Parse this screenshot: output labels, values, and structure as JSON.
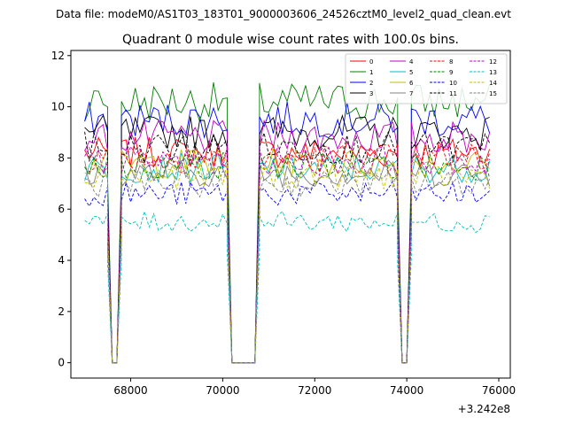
{
  "chart_data": {
    "type": "line",
    "suptitle": "Data file: modeM0/AS1T03_183T01_9000003606_24526cztM0_level2_quad_clean.evt",
    "title": "Quadrant 0 module wise count rates with 100.0s bins.",
    "xlabel": "",
    "ylabel": "",
    "x_offset_label": "+3.242e8",
    "xlim": [
      66700,
      76250
    ],
    "ylim": [
      -0.6,
      12.2
    ],
    "x_ticks": [
      68000,
      70000,
      72000,
      74000,
      76000
    ],
    "x_tick_labels": [
      "68000",
      "70000",
      "72000",
      "74000",
      "76000"
    ],
    "y_ticks": [
      0,
      2,
      4,
      6,
      8,
      10,
      12
    ],
    "y_tick_labels": [
      "0",
      "2",
      "4",
      "6",
      "8",
      "10",
      "12"
    ],
    "legend_position": "top-right",
    "segments": [
      {
        "start": 67000,
        "end": 67500,
        "profile": "plateau"
      },
      {
        "start": 67500,
        "end": 67800,
        "profile": "drop"
      },
      {
        "start": 67800,
        "end": 70100,
        "profile": "plateau"
      },
      {
        "start": 70100,
        "end": 70800,
        "profile": "gap"
      },
      {
        "start": 70800,
        "end": 73800,
        "profile": "plateau"
      },
      {
        "start": 73800,
        "end": 74100,
        "profile": "drop"
      },
      {
        "start": 74100,
        "end": 75800,
        "profile": "plateau"
      }
    ],
    "series": [
      {
        "name": "0",
        "color": "#ff0000",
        "dash": "solid",
        "level": 8.2
      },
      {
        "name": "1",
        "color": "#008000",
        "dash": "solid",
        "level": 10.2
      },
      {
        "name": "2",
        "color": "#0000ff",
        "dash": "solid",
        "level": 9.5
      },
      {
        "name": "3",
        "color": "#000000",
        "dash": "solid",
        "level": 9.0
      },
      {
        "name": "4",
        "color": "#bf00bf",
        "dash": "solid",
        "level": 8.8
      },
      {
        "name": "5",
        "color": "#00bfbf",
        "dash": "solid",
        "level": 7.6
      },
      {
        "name": "6",
        "color": "#bfbf00",
        "dash": "solid",
        "level": 7.8
      },
      {
        "name": "7",
        "color": "#808080",
        "dash": "solid",
        "level": 7.4
      },
      {
        "name": "8",
        "color": "#ff0000",
        "dash": "dashed",
        "level": 8.0
      },
      {
        "name": "9",
        "color": "#008000",
        "dash": "dashed",
        "level": 7.7
      },
      {
        "name": "10",
        "color": "#0000ff",
        "dash": "dashed",
        "level": 6.6
      },
      {
        "name": "11",
        "color": "#000000",
        "dash": "dashed",
        "level": 8.4
      },
      {
        "name": "12",
        "color": "#bf00bf",
        "dash": "dashed",
        "level": 7.9
      },
      {
        "name": "13",
        "color": "#00bfbf",
        "dash": "dashed",
        "level": 5.5
      },
      {
        "name": "14",
        "color": "#bfbf00",
        "dash": "dashed",
        "level": 7.3
      },
      {
        "name": "15",
        "color": "#808080",
        "dash": "dashed",
        "level": 7.0
      }
    ]
  }
}
